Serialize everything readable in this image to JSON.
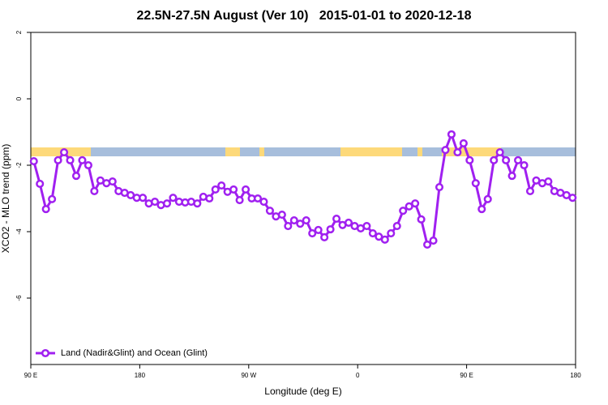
{
  "chart_data": {
    "type": "line",
    "title": "22.5N-27.5N August (Ver 10)   2015-01-01 to 2020-12-18",
    "x_label": "Longitude (deg E)",
    "y_label": "XCO2 - MLO trend (ppm)",
    "xlim": [
      90,
      540
    ],
    "ylim": [
      -8,
      2
    ],
    "xticks": [
      {
        "value": 90,
        "label": "90 E"
      },
      {
        "value": 180,
        "label": "180"
      },
      {
        "value": 270,
        "label": "90 W"
      },
      {
        "value": 360,
        "label": "0"
      },
      {
        "value": 450,
        "label": "90 E"
      },
      {
        "value": 540,
        "label": "180"
      }
    ],
    "yticks": [
      2,
      0,
      -2,
      -4,
      -6
    ],
    "legend": "bottom-left",
    "x": [
      92.5,
      97.5,
      102.5,
      107.5,
      112.5,
      117.5,
      122.5,
      127.5,
      132.5,
      137.5,
      142.5,
      147.5,
      152.5,
      157.5,
      162.5,
      167.5,
      172.5,
      177.5,
      182.5,
      187.5,
      192.5,
      197.5,
      202.5,
      207.5,
      212.5,
      217.5,
      222.5,
      227.5,
      232.5,
      237.5,
      242.5,
      247.5,
      252.5,
      257.5,
      262.5,
      267.5,
      272.5,
      277.5,
      282.5,
      287.5,
      292.5,
      297.5,
      302.5,
      307.5,
      312.5,
      317.5,
      322.5,
      327.5,
      332.5,
      337.5,
      342.5,
      347.5,
      352.5,
      357.5,
      362.5,
      367.5,
      372.5,
      377.5,
      382.5,
      387.5,
      392.5,
      397.5,
      402.5,
      407.5,
      412.5,
      417.5,
      422.5,
      427.5,
      432.5,
      437.5,
      442.5,
      447.5,
      452.5,
      457.5,
      462.5,
      467.5,
      472.5,
      477.5,
      482.5,
      487.5,
      492.5,
      497.5,
      502.5,
      507.5,
      512.5,
      517.5,
      522.5,
      527.5,
      532.5,
      537.5
    ],
    "series": [
      {
        "name": "Land (Nadir&Glint) and Ocean (Glint)",
        "color": "#a020f0",
        "values": [
          -1.88,
          -2.56,
          -3.32,
          -3.02,
          -1.85,
          -1.61,
          -1.85,
          -2.32,
          -1.85,
          -2.0,
          -2.78,
          -2.46,
          -2.54,
          -2.49,
          -2.78,
          -2.83,
          -2.9,
          -2.98,
          -2.98,
          -3.15,
          -3.1,
          -3.2,
          -3.15,
          -2.98,
          -3.1,
          -3.12,
          -3.1,
          -3.15,
          -2.95,
          -3.0,
          -2.73,
          -2.61,
          -2.8,
          -2.73,
          -3.05,
          -2.73,
          -3.0,
          -3.0,
          -3.1,
          -3.37,
          -3.54,
          -3.49,
          -3.83,
          -3.66,
          -3.76,
          -3.66,
          -4.05,
          -3.95,
          -4.17,
          -3.93,
          -3.61,
          -3.8,
          -3.73,
          -3.83,
          -3.9,
          -3.83,
          -4.05,
          -4.15,
          -4.24,
          -4.05,
          -3.83,
          -3.37,
          -3.24,
          -3.15,
          -3.63,
          -4.39,
          -4.27,
          -2.66,
          -1.54,
          -1.07,
          -1.61,
          -1.34,
          -1.85,
          -2.54,
          -3.32,
          -3.02,
          -1.85,
          -1.61,
          -1.85,
          -2.32,
          -1.85,
          -2.0,
          -2.78,
          -2.46,
          -2.54,
          -2.49,
          -2.78,
          -2.83,
          -2.9,
          -2.98
        ]
      }
    ]
  }
}
